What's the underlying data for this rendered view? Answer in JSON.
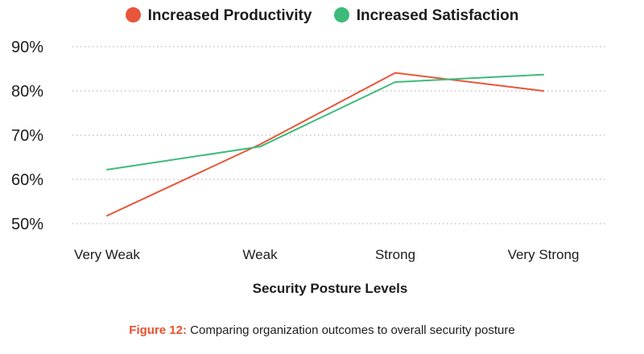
{
  "chart_data": {
    "type": "line",
    "categories": [
      "Very Weak",
      "Weak",
      "Strong",
      "Very Strong"
    ],
    "series": [
      {
        "name": "Increased Productivity",
        "color": "#e8553a",
        "values": [
          51.8,
          67.9,
          84.1,
          80.0
        ]
      },
      {
        "name": "Increased Satisfaction",
        "color": "#3dbb7a",
        "values": [
          62.2,
          67.4,
          82.0,
          83.7
        ]
      }
    ],
    "xlabel": "Security Posture Levels",
    "ylabel": "",
    "ylim": [
      50,
      90
    ],
    "yticks": [
      50,
      60,
      70,
      80,
      90
    ],
    "ytick_labels": [
      "50%",
      "60%",
      "70%",
      "80%",
      "90%"
    ],
    "grid": "horizontal dotted",
    "legend_position": "top-center"
  },
  "caption": {
    "prefix": "Figure 12:",
    "text": " Comparing organization outcomes to overall security posture"
  }
}
